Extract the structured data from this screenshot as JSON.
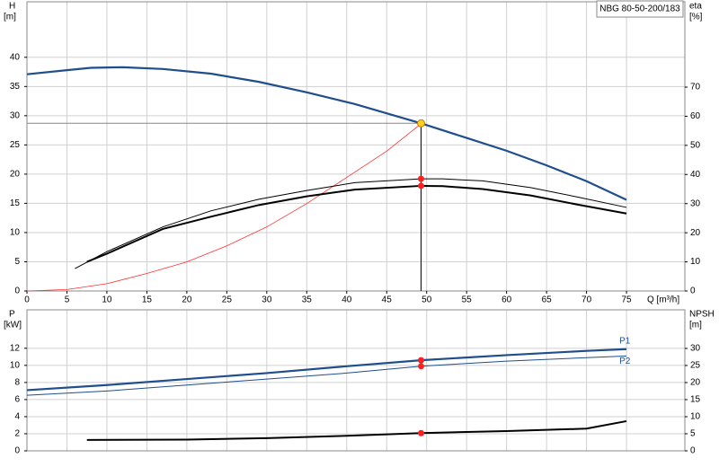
{
  "chart_data": [
    {
      "type": "line",
      "title": "NBG 80-50-200/183",
      "x_label": "Q [m³/h]",
      "y_label": "H",
      "y_unit": "[m]",
      "y2_label": "eta",
      "y2_unit": "[%]",
      "xlim": [
        0,
        82.3
      ],
      "xticks": [
        0,
        5,
        10,
        15,
        20,
        25,
        30,
        35,
        40,
        45,
        50,
        55,
        60,
        65,
        70,
        75
      ],
      "ylim": [
        0,
        49.5
      ],
      "yticks": [
        0,
        5,
        10,
        15,
        20,
        25,
        30,
        35,
        40
      ],
      "y2lim": [
        0,
        99.3
      ],
      "y2ticks": [
        0,
        10,
        20,
        30,
        40,
        50,
        60,
        70
      ],
      "grid": true,
      "series": [
        {
          "color": "#1f4e8c",
          "width": 2.2,
          "x": [
            0,
            5,
            8,
            12,
            17,
            23,
            29,
            35,
            41,
            49.3,
            55,
            60,
            65,
            70,
            75
          ],
          "values": [
            37.1,
            37.8,
            38.2,
            38.3,
            38.0,
            37.2,
            35.8,
            34.0,
            32.0,
            28.7,
            26.2,
            24.0,
            21.5,
            18.8,
            15.6
          ]
        },
        {
          "color": "#ff3030",
          "width": 0.8,
          "axis": "y2",
          "x": [
            0,
            5,
            10,
            15,
            20,
            25,
            30,
            35,
            40,
            45,
            49.3
          ],
          "values": [
            0,
            0.5,
            2.5,
            6,
            10,
            15.5,
            22,
            30,
            39,
            48,
            57.4
          ]
        },
        {
          "color": "#000000",
          "width": 1,
          "axis": "y2",
          "x": [
            6,
            10,
            17,
            23,
            29,
            35,
            41,
            49.3,
            52,
            57,
            63,
            69,
            75
          ],
          "values": [
            7.7,
            13.5,
            22,
            27.5,
            31.5,
            34.5,
            37.2,
            38.5,
            38.5,
            37.8,
            35.5,
            32.2,
            28.7
          ]
        },
        {
          "color": "#000000",
          "width": 2,
          "axis": "y2",
          "x": [
            7.5,
            10,
            17,
            23,
            29,
            35,
            41,
            49.3,
            52,
            57,
            63,
            69,
            75
          ],
          "values": [
            10,
            12.8,
            21.3,
            25.5,
            29.5,
            32.5,
            34.8,
            36.1,
            36,
            35,
            32.8,
            29.6,
            26.6
          ]
        }
      ],
      "duty_point": {
        "x": 49.3,
        "y": 28.7
      },
      "markers": [
        {
          "x": 49.3,
          "y": 38.5,
          "axis": "y2"
        },
        {
          "x": 49.3,
          "y": 36.1,
          "axis": "y2"
        }
      ]
    },
    {
      "type": "line",
      "y_label": "P",
      "y_unit": "[kW]",
      "y2_label": "NPSH",
      "y2_unit": "[m]",
      "xlim": [
        0,
        82.3
      ],
      "ylim": [
        0,
        16.5
      ],
      "yticks": [
        0,
        2,
        4,
        6,
        8,
        10,
        12
      ],
      "y2lim": [
        0,
        41.3
      ],
      "y2ticks": [
        0,
        5,
        10,
        15,
        20,
        25,
        30
      ],
      "grid": true,
      "series": [
        {
          "name": "P1",
          "color": "#1f4e8c",
          "width": 2.2,
          "x": [
            0,
            10,
            20,
            30,
            40,
            49.3,
            60,
            70,
            75
          ],
          "values": [
            7.1,
            7.7,
            8.4,
            9.1,
            9.9,
            10.6,
            11.2,
            11.7,
            11.9
          ]
        },
        {
          "name": "P2",
          "color": "#1f4e8c",
          "width": 1,
          "x": [
            0,
            10,
            20,
            30,
            40,
            49.3,
            60,
            70,
            75
          ],
          "values": [
            6.5,
            7.0,
            7.7,
            8.4,
            9.1,
            9.9,
            10.5,
            10.9,
            11.1
          ]
        },
        {
          "color": "#000000",
          "width": 2,
          "axis": "y2",
          "x": [
            7.5,
            20,
            30,
            40,
            49.3,
            60,
            70,
            75
          ],
          "values": [
            3.2,
            3.3,
            3.7,
            4.4,
            5.2,
            5.8,
            6.5,
            8.7
          ]
        }
      ],
      "markers": [
        {
          "x": 49.3,
          "y": 10.6
        },
        {
          "x": 49.3,
          "y": 9.9
        },
        {
          "x": 49.3,
          "y": 5.2,
          "axis": "y2"
        }
      ]
    }
  ]
}
